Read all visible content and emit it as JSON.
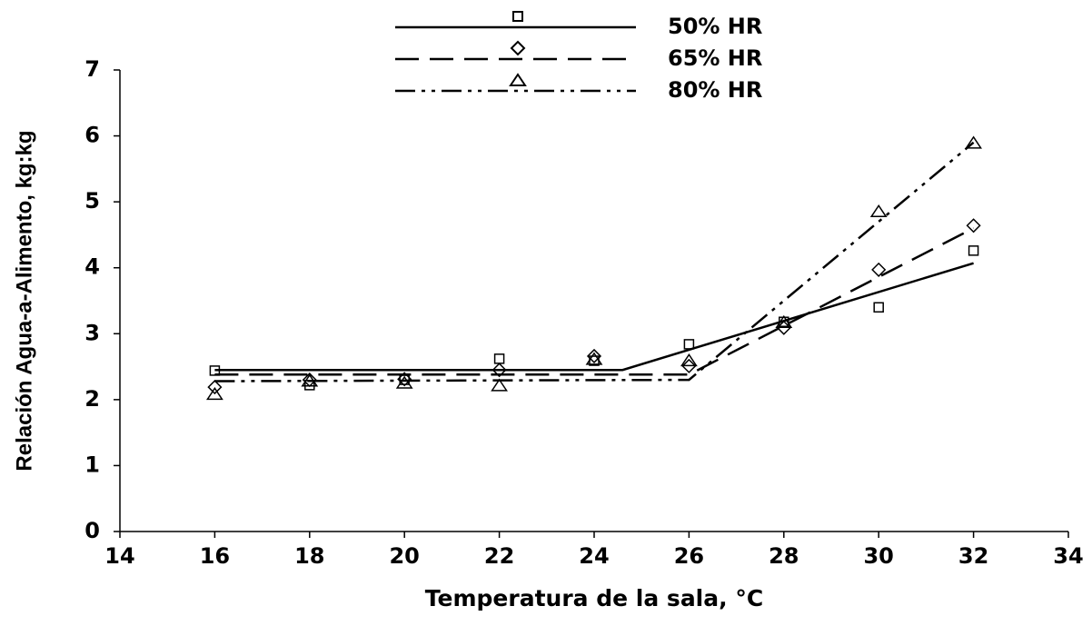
{
  "chart_data": {
    "type": "scatter",
    "xlabel": "Temperatura de la sala, °C",
    "ylabel": "Relación Agua-a-Alimento, kg:kg",
    "x": [
      16,
      18,
      20,
      22,
      24,
      26,
      28,
      30,
      32
    ],
    "xlim": [
      14,
      34
    ],
    "xticks": [
      14,
      16,
      18,
      20,
      22,
      24,
      26,
      28,
      30,
      32,
      34
    ],
    "ylim": [
      0,
      7
    ],
    "yticks": [
      0,
      1,
      2,
      3,
      4,
      5,
      6,
      7
    ],
    "grid": false,
    "legend": "top",
    "series": [
      {
        "name": "50% HR",
        "color": "#000000",
        "marker": "square",
        "dash": "solid",
        "values": [
          2.44,
          2.22,
          2.3,
          2.62,
          2.59,
          2.84,
          3.18,
          3.4,
          4.26
        ],
        "fit": {
          "x": [
            16,
            24.6,
            32
          ],
          "y": [
            2.45,
            2.45,
            4.07
          ]
        }
      },
      {
        "name": "65% HR",
        "color": "#000000",
        "marker": "diamond",
        "dash": "dashed",
        "values": [
          2.19,
          2.3,
          2.31,
          2.45,
          2.66,
          2.51,
          3.09,
          3.97,
          4.64
        ],
        "fit": {
          "x": [
            16,
            26,
            32
          ],
          "y": [
            2.38,
            2.38,
            4.6
          ]
        }
      },
      {
        "name": "80% HR",
        "color": "#000000",
        "marker": "triangle",
        "dash": "dashdotdot",
        "values": [
          2.09,
          2.29,
          2.26,
          2.22,
          2.62,
          2.6,
          3.18,
          4.86,
          5.9
        ],
        "fit": {
          "x": [
            16,
            26,
            32
          ],
          "y": [
            2.28,
            2.3,
            5.9
          ]
        }
      }
    ]
  }
}
